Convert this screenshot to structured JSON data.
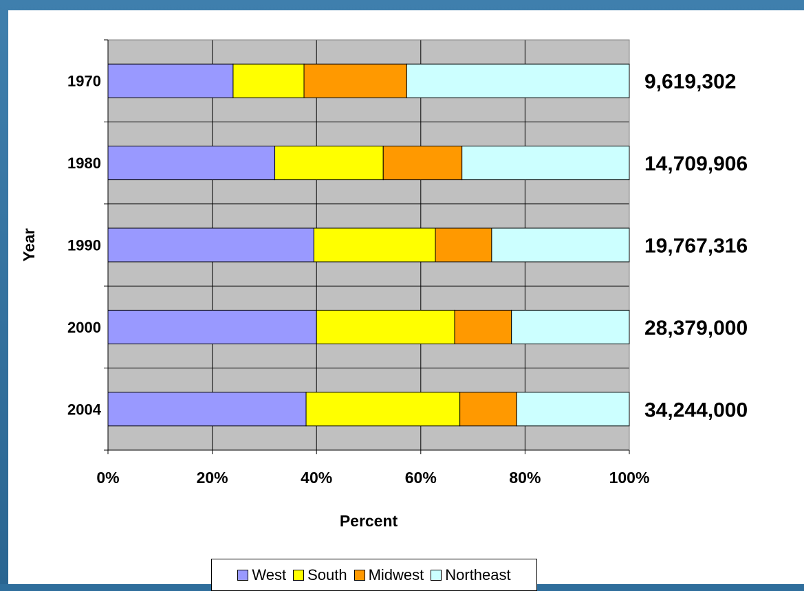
{
  "chart_data": {
    "type": "bar",
    "orientation": "horizontal",
    "stacked": "percent",
    "ylabel": "Year",
    "xlabel": "Percent",
    "x_ticks": [
      "0%",
      "20%",
      "40%",
      "60%",
      "80%",
      "100%"
    ],
    "xlim": [
      0,
      100
    ],
    "grid": true,
    "legend_position": "bottom",
    "categories": [
      "1970",
      "1980",
      "1990",
      "2000",
      "2004"
    ],
    "totals": [
      "9,619,302",
      "14,709,906",
      "19,767,316",
      "28,379,000",
      "34,244,000"
    ],
    "series": [
      {
        "name": "West",
        "color": "#9999ff",
        "values": [
          24,
          32,
          39.5,
          40,
          38
        ]
      },
      {
        "name": "South",
        "color": "#ffff00",
        "values": [
          13.6,
          20.8,
          23.3,
          26.5,
          29.5
        ]
      },
      {
        "name": "Midwest",
        "color": "#ff9900",
        "values": [
          19.7,
          15.1,
          10.8,
          10.9,
          10.9
        ]
      },
      {
        "name": "Northeast",
        "color": "#ccffff",
        "values": [
          42.7,
          32.1,
          26.4,
          22.6,
          21.6
        ]
      }
    ]
  }
}
